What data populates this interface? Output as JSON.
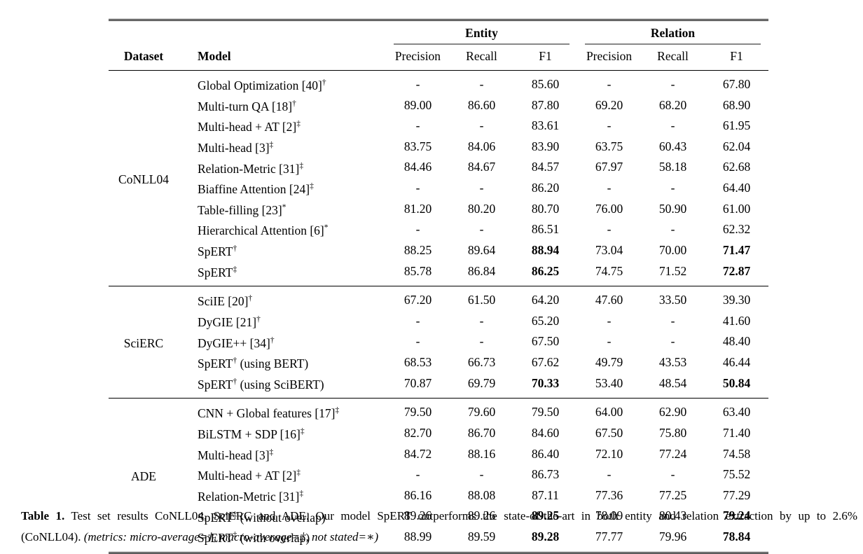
{
  "table": {
    "groups": [
      "Entity",
      "Relation"
    ],
    "headers": {
      "dataset": "Dataset",
      "model": "Model",
      "metrics": [
        "Precision",
        "Recall",
        "F1"
      ]
    },
    "sections": [
      {
        "dataset": "CoNLL04",
        "rows": [
          {
            "name": "Global Optimization [40]",
            "sup": "†",
            "values": [
              "-",
              "-",
              "85.60",
              "-",
              "-",
              "67.80"
            ]
          },
          {
            "name": "Multi-turn QA [18]",
            "sup": "†",
            "values": [
              "89.00",
              "86.60",
              "87.80",
              "69.20",
              "68.20",
              "68.90"
            ]
          },
          {
            "name": "Multi-head + AT [2]",
            "sup": "‡",
            "values": [
              "-",
              "-",
              "83.61",
              "-",
              "-",
              "61.95"
            ]
          },
          {
            "name": "Multi-head [3]",
            "sup": "‡",
            "values": [
              "83.75",
              "84.06",
              "83.90",
              "63.75",
              "60.43",
              "62.04"
            ]
          },
          {
            "name": "Relation-Metric [31]",
            "sup": "‡",
            "values": [
              "84.46",
              "84.67",
              "84.57",
              "67.97",
              "58.18",
              "62.68"
            ]
          },
          {
            "name": "Biaffine Attention [24]",
            "sup": "‡",
            "values": [
              "-",
              "-",
              "86.20",
              "-",
              "-",
              "64.40"
            ]
          },
          {
            "name": "Table-filling [23]",
            "sup": "*",
            "values": [
              "81.20",
              "80.20",
              "80.70",
              "76.00",
              "50.90",
              "61.00"
            ]
          },
          {
            "name": "Hierarchical Attention [6]",
            "sup": "*",
            "values": [
              "-",
              "-",
              "86.51",
              "-",
              "-",
              "62.32"
            ]
          },
          {
            "name": "SpERT",
            "sup": "†",
            "values": [
              "88.25",
              "89.64",
              "88.94",
              "73.04",
              "70.00",
              "71.47"
            ],
            "bold": [
              2,
              5
            ]
          },
          {
            "name": "SpERT",
            "sup": "‡",
            "values": [
              "85.78",
              "86.84",
              "86.25",
              "74.75",
              "71.52",
              "72.87"
            ],
            "bold": [
              2,
              5
            ]
          }
        ]
      },
      {
        "dataset": "SciERC",
        "rows": [
          {
            "name": "SciIE [20]",
            "sup": "†",
            "values": [
              "67.20",
              "61.50",
              "64.20",
              "47.60",
              "33.50",
              "39.30"
            ]
          },
          {
            "name": "DyGIE [21]",
            "sup": "†",
            "values": [
              "-",
              "-",
              "65.20",
              "-",
              "-",
              "41.60"
            ]
          },
          {
            "name": "DyGIE++ [34]",
            "sup": "†",
            "values": [
              "-",
              "-",
              "67.50",
              "-",
              "-",
              "48.40"
            ]
          },
          {
            "name": "SpERT",
            "sup": "†",
            "suffix": " (using BERT)",
            "values": [
              "68.53",
              "66.73",
              "67.62",
              "49.79",
              "43.53",
              "46.44"
            ]
          },
          {
            "name": "SpERT",
            "sup": "†",
            "suffix": " (using SciBERT)",
            "values": [
              "70.87",
              "69.79",
              "70.33",
              "53.40",
              "48.54",
              "50.84"
            ],
            "bold": [
              2,
              5
            ]
          }
        ]
      },
      {
        "dataset": "ADE",
        "rows": [
          {
            "name": "CNN + Global features [17]",
            "sup": "‡",
            "values": [
              "79.50",
              "79.60",
              "79.50",
              "64.00",
              "62.90",
              "63.40"
            ]
          },
          {
            "name": "BiLSTM + SDP [16]",
            "sup": "‡",
            "values": [
              "82.70",
              "86.70",
              "84.60",
              "67.50",
              "75.80",
              "71.40"
            ]
          },
          {
            "name": "Multi-head [3]",
            "sup": "‡",
            "values": [
              "84.72",
              "88.16",
              "86.40",
              "72.10",
              "77.24",
              "74.58"
            ]
          },
          {
            "name": "Multi-head + AT [2]",
            "sup": "‡",
            "values": [
              "-",
              "-",
              "86.73",
              "-",
              "-",
              "75.52"
            ]
          },
          {
            "name": "Relation-Metric [31]",
            "sup": "‡",
            "values": [
              "86.16",
              "88.08",
              "87.11",
              "77.36",
              "77.25",
              "77.29"
            ]
          },
          {
            "name": "SpERT",
            "sup": "‡",
            "suffix": " (without overlap)",
            "values": [
              "89.26",
              "89.26",
              "89.25",
              "78.09",
              "80.43",
              "79.24"
            ],
            "bold": [
              2,
              5
            ]
          },
          {
            "name": "SpERT",
            "sup": "‡",
            "suffix": " (with overlap)",
            "values": [
              "88.99",
              "89.59",
              "89.28",
              "77.77",
              "79.96",
              "78.84"
            ],
            "bold": [
              2,
              5
            ]
          }
        ]
      }
    ]
  },
  "caption": {
    "label": "Table 1.",
    "line1": "Test set results CoNLL04, SciERC and ADE. Our model SpERT outperforms the state-of-the-art in both entity and relation extraction by up to 2.6%",
    "line2": "(CoNLL04).",
    "note": "(metrics: micro-average=†, macro-average=‡, not stated=∗)"
  }
}
